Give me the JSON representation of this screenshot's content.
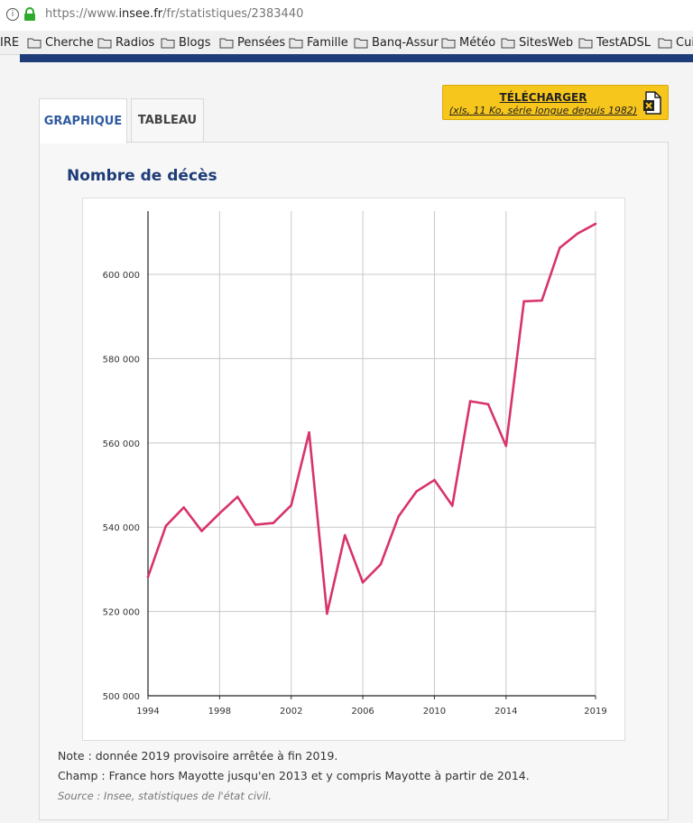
{
  "browser": {
    "url_prefix": "https://www.",
    "url_host": "insee.fr",
    "url_path": "/fr/statistiques/2383440"
  },
  "bookmarks": [
    "IRE",
    "Cherche",
    "Radios",
    "Blogs",
    "Pensées",
    "Famille",
    "Banq-Assur",
    "Météo",
    "SitesWeb",
    "TestADSL",
    "Cuis"
  ],
  "tabs": {
    "graph": "GRAPHIQUE",
    "table": "TABLEAU"
  },
  "download": {
    "title": "TÉLÉCHARGER",
    "subtitle": "(xls, 11 Ko, série longue depuis 1982)"
  },
  "chart_title": "Nombre de décès",
  "notes": {
    "note": "Note : donnée 2019 provisoire arrêtée à fin 2019.",
    "champ": "Champ : France hors Mayotte jusqu'en 2013 et y compris Mayotte à partir de 2014.",
    "source": "Source : Insee, statistiques de l'état civil."
  },
  "chart_data": {
    "type": "line",
    "title": "Nombre de décès",
    "xlabel": "",
    "ylabel": "",
    "x": [
      1994,
      1995,
      1996,
      1997,
      1998,
      1999,
      2000,
      2001,
      2002,
      2003,
      2004,
      2005,
      2006,
      2007,
      2008,
      2009,
      2010,
      2011,
      2012,
      2013,
      2014,
      2015,
      2016,
      2017,
      2018,
      2019
    ],
    "series": [
      {
        "values": [
          528200,
          540300,
          544700,
          539100,
          543300,
          547200,
          540600,
          541000,
          545200,
          562500,
          519500,
          538100,
          526900,
          531200,
          542600,
          548500,
          551200,
          545100,
          569900,
          569200,
          559300,
          593600,
          593800,
          606300,
          609700,
          612000
        ]
      }
    ],
    "xlim": [
      1994,
      2019
    ],
    "ylim": [
      500000,
      615000
    ],
    "x_ticks": [
      1994,
      1998,
      2002,
      2006,
      2010,
      2014,
      2019
    ],
    "x_tick_labels": [
      "1994",
      "1998",
      "2002",
      "2006",
      "2010",
      "2014",
      "2019"
    ],
    "y_ticks": [
      500000,
      520000,
      540000,
      560000,
      580000,
      600000
    ],
    "y_tick_labels": [
      "500 000",
      "520 000",
      "540 000",
      "560 000",
      "580 000",
      "600 000"
    ],
    "grid": true,
    "line_color": "#d8336b"
  }
}
